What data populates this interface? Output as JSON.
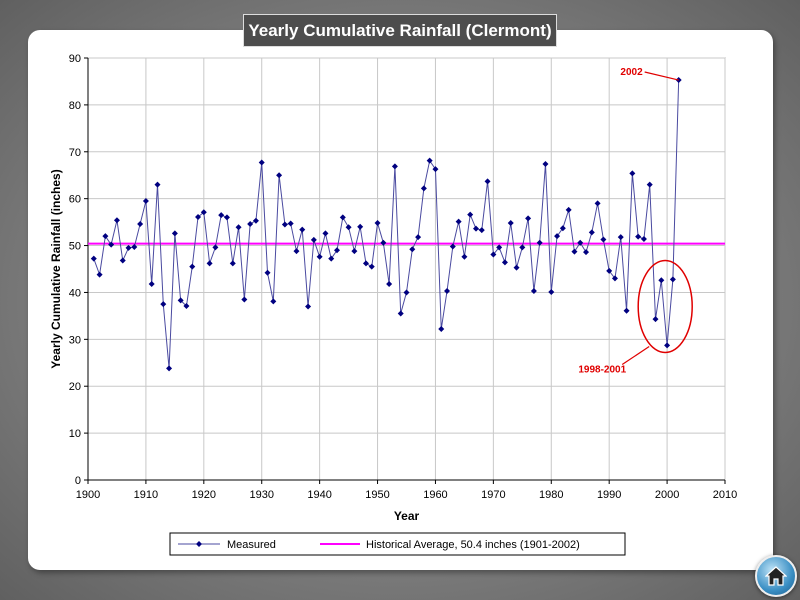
{
  "chart_data": {
    "type": "line",
    "title": "Yearly Cumulative Rainfall (Clermont)",
    "xlabel": "Year",
    "ylabel": "Yearly Cumulative Rainfall (inches)",
    "xlim": [
      1900,
      2010
    ],
    "ylim": [
      0,
      90
    ],
    "xticks": [
      "1900",
      "1910",
      "1920",
      "1930",
      "1940",
      "1950",
      "1960",
      "1970",
      "1980",
      "1990",
      "2000",
      "2010"
    ],
    "yticks": [
      "0",
      "10",
      "20",
      "30",
      "40",
      "50",
      "60",
      "70",
      "80",
      "90"
    ],
    "grid": true,
    "legend_position": "bottom",
    "series": [
      {
        "name": "Measured",
        "color": "#000080",
        "x_start": 1901,
        "values": [
          47.2,
          43.8,
          52,
          50.2,
          55.4,
          46.8,
          49.5,
          49.7,
          54.6,
          59.5,
          41.8,
          63,
          37.5,
          23.8,
          52.6,
          38.3,
          37.1,
          45.5,
          56.1,
          57.1,
          46.2,
          49.6,
          56.5,
          56,
          46.2,
          53.9,
          38.5,
          54.6,
          55.3,
          67.7,
          44.2,
          38.1,
          65,
          54.5,
          54.7,
          48.8,
          53.4,
          37,
          51.2,
          47.6,
          52.6,
          47.2,
          49,
          56,
          53.9,
          48.8,
          54,
          46.2,
          45.5,
          54.8,
          50.6,
          41.8,
          66.9,
          35.5,
          40,
          49.2,
          51.8,
          62.2,
          68.1,
          66.3,
          32.2,
          40.3,
          49.8,
          55.1,
          47.6,
          56.6,
          53.6,
          53.3,
          63.7,
          48.1,
          49.6,
          46.4,
          54.8,
          45.3,
          49.6,
          55.8,
          40.3,
          50.6,
          67.4,
          40.1,
          52,
          53.7,
          57.6,
          48.7,
          50.6,
          48.6,
          52.8,
          59,
          51.3,
          44.6,
          43,
          51.8,
          36.1,
          65.4,
          51.9,
          51.4,
          63,
          34.3,
          42.6,
          28.7,
          42.8,
          85.3
        ]
      },
      {
        "name": "Historical Average, 50.4 inches (1901-2002)",
        "color": "#ff00ff",
        "value": 50.4
      }
    ],
    "annotations": [
      {
        "text": "2002",
        "year": 2002,
        "color": "#e00000"
      },
      {
        "text": "1998-2001",
        "years": [
          1998,
          2001
        ],
        "color": "#e00000"
      }
    ]
  },
  "nav": {
    "home_icon": "home-icon"
  }
}
